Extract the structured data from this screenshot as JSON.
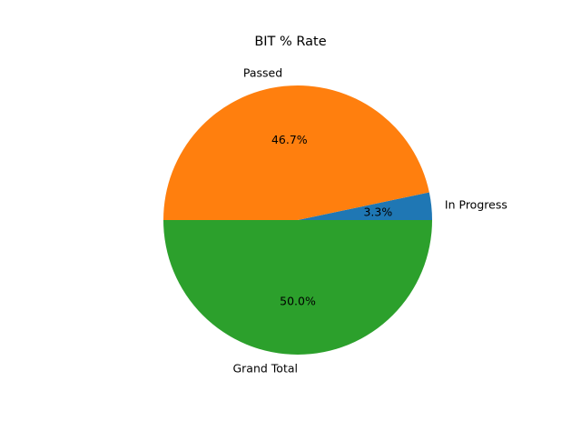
{
  "chart_data": {
    "type": "pie",
    "title": "BIT % Rate",
    "labels": [
      "In Progress",
      "Passed",
      "Grand Total"
    ],
    "values": [
      3.3,
      46.7,
      50.0
    ],
    "percent_labels": [
      "3.3%",
      "46.7%",
      "50.0%"
    ],
    "colors": [
      "#1f77b4",
      "#ff7f0e",
      "#2ca02c"
    ],
    "start_angle_deg": 0,
    "direction": "counterclockwise",
    "legend": "none"
  }
}
